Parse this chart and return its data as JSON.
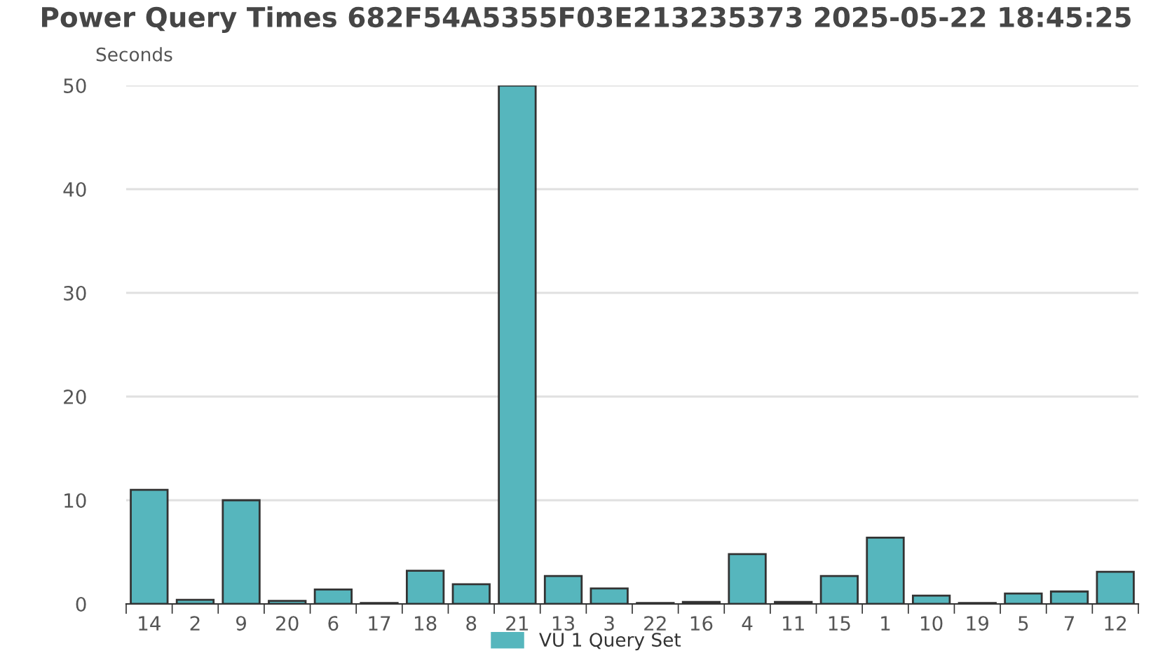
{
  "chart_data": {
    "type": "bar",
    "title": "Power Query Times 682F54A5355F03E213235373 2025-05-22 18:45:25",
    "ylabel": "Seconds",
    "categories": [
      "14",
      "2",
      "9",
      "20",
      "6",
      "17",
      "18",
      "8",
      "21",
      "13",
      "3",
      "22",
      "16",
      "4",
      "11",
      "15",
      "1",
      "10",
      "19",
      "5",
      "7",
      "12"
    ],
    "series": [
      {
        "name": "VU 1 Query Set",
        "color": "#56b6bd",
        "values": [
          11.0,
          0.4,
          10.0,
          0.3,
          1.4,
          0.1,
          3.2,
          1.9,
          50.0,
          2.7,
          1.5,
          0.1,
          0.2,
          4.8,
          0.2,
          2.7,
          6.4,
          0.8,
          0.1,
          1.0,
          1.2,
          3.1
        ]
      }
    ],
    "ylim": [
      0,
      50
    ],
    "yticks": [
      0,
      10,
      20,
      30,
      40,
      50
    ],
    "grid": "y",
    "legend": "bottom"
  }
}
